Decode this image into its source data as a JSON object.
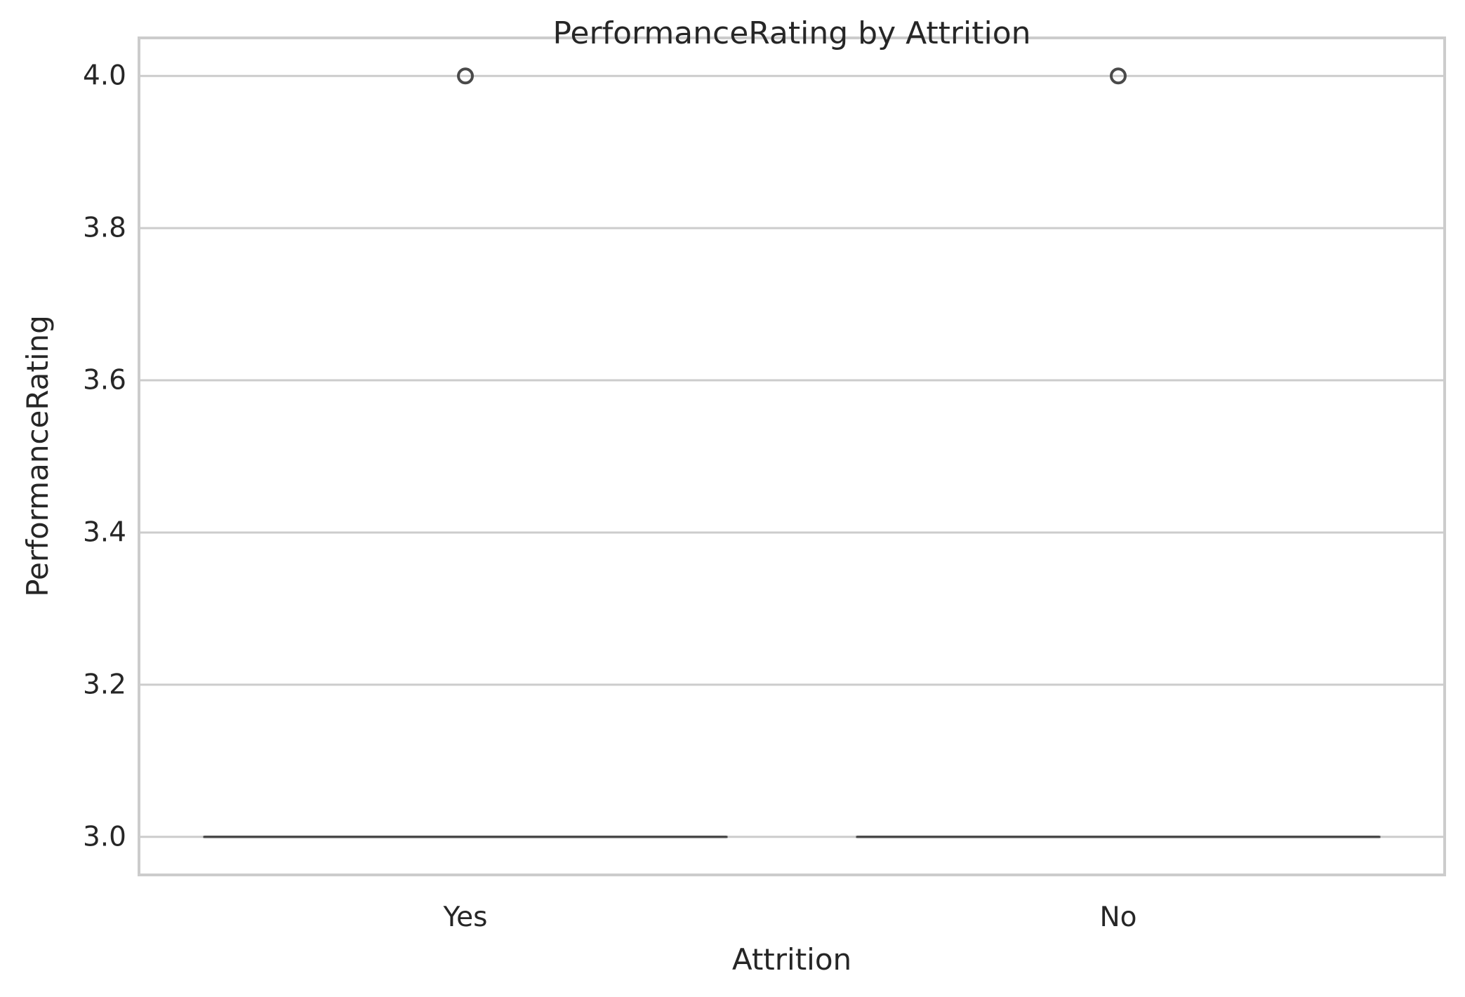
{
  "chart_data": {
    "type": "box",
    "title": "PerformanceRating by Attrition",
    "xlabel": "Attrition",
    "ylabel": "PerformanceRating",
    "categories": [
      "Yes",
      "No"
    ],
    "ylim": [
      2.95,
      4.05
    ],
    "yticks": [
      3.0,
      3.2,
      3.4,
      3.6,
      3.8,
      4.0
    ],
    "ytick_labels": [
      "3.0",
      "3.2",
      "3.4",
      "3.6",
      "3.8",
      "4.0"
    ],
    "grid": "horizontal",
    "boxes": [
      {
        "category": "Yes",
        "min": 3.0,
        "q1": 3.0,
        "median": 3.0,
        "q3": 3.0,
        "max": 3.0,
        "outliers": [
          4.0
        ]
      },
      {
        "category": "No",
        "min": 3.0,
        "q1": 3.0,
        "median": 3.0,
        "q3": 3.0,
        "max": 3.0,
        "outliers": [
          4.0
        ]
      }
    ],
    "colors": {
      "box_line": "#4a4a4a",
      "grid": "#cccccc",
      "spine": "#cccccc",
      "text": "#262626",
      "background": "#ffffff"
    }
  }
}
